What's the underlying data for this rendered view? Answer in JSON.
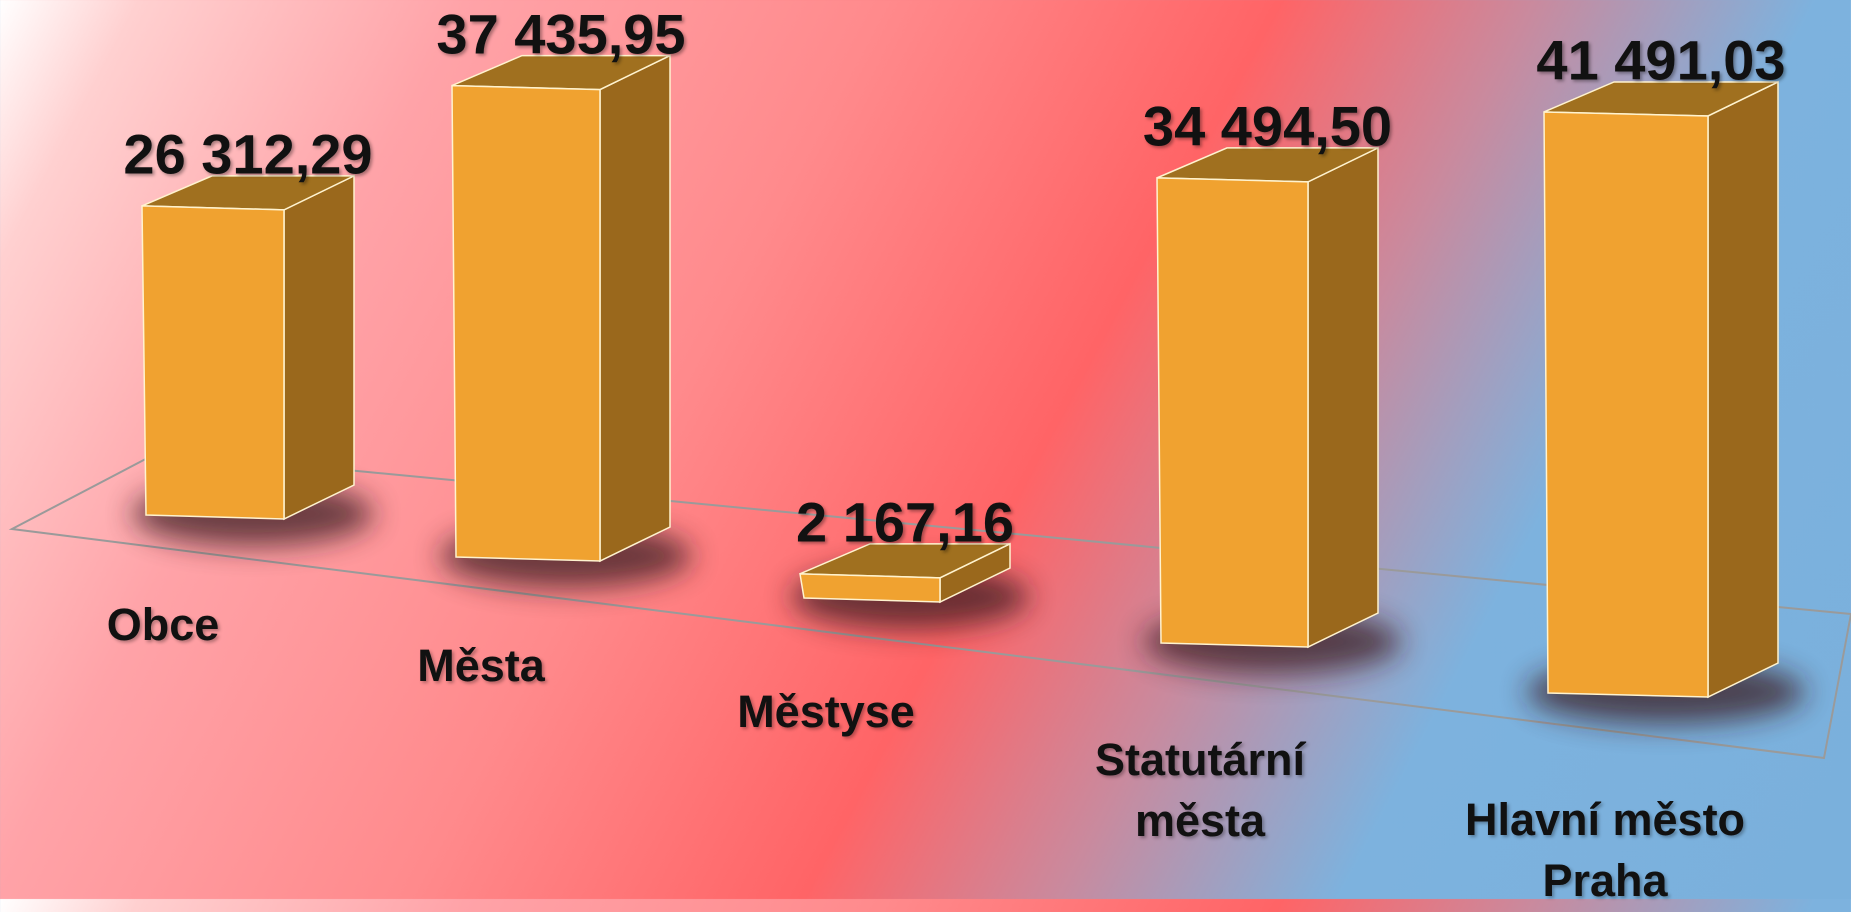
{
  "chart_data": {
    "type": "bar3d",
    "categories": [
      "Obce",
      "Města",
      "Městyse",
      "Statutární města",
      "Hlavní město Praha"
    ],
    "values": [
      26312.29,
      37435.95,
      2167.16,
      34494.5,
      41491.03
    ],
    "value_labels": [
      "26 312,29",
      "37 435,95",
      "2 167,16",
      "34 494,50",
      "41 491,03"
    ],
    "color": "#f0a230"
  }
}
